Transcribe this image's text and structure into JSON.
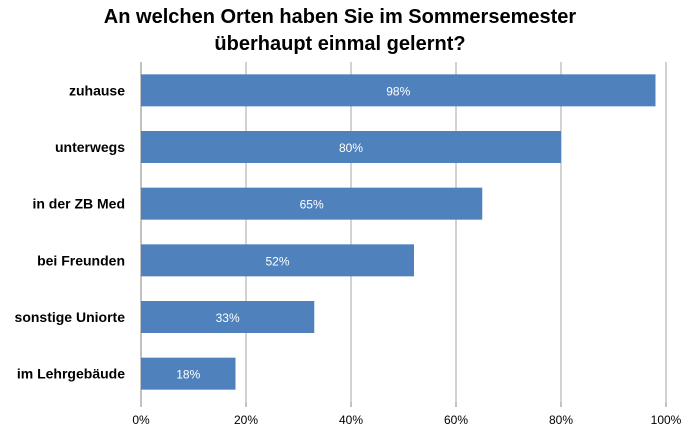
{
  "chart_data": {
    "type": "bar",
    "orientation": "horizontal",
    "title_line1": "An welchen Orten haben Sie im Sommersemester",
    "title_line2": "überhaupt einmal gelernt?",
    "categories": [
      "zuhause",
      "unterwegs",
      "in der ZB Med",
      "bei Freunden",
      "sonstige Uniorte",
      "im Lehrgebäude"
    ],
    "values": [
      98,
      80,
      65,
      52,
      33,
      18
    ],
    "data_labels": [
      "98%",
      "80%",
      "65%",
      "52%",
      "33%",
      "18%"
    ],
    "x_ticks": [
      0,
      20,
      40,
      60,
      80,
      100
    ],
    "x_tick_labels": [
      "0%",
      "20%",
      "40%",
      "60%",
      "80%",
      "100%"
    ],
    "xlim": [
      0,
      100
    ],
    "grid": true,
    "legend": "none",
    "bar_color": "#4f81bd",
    "label_color": "#ffffff"
  }
}
